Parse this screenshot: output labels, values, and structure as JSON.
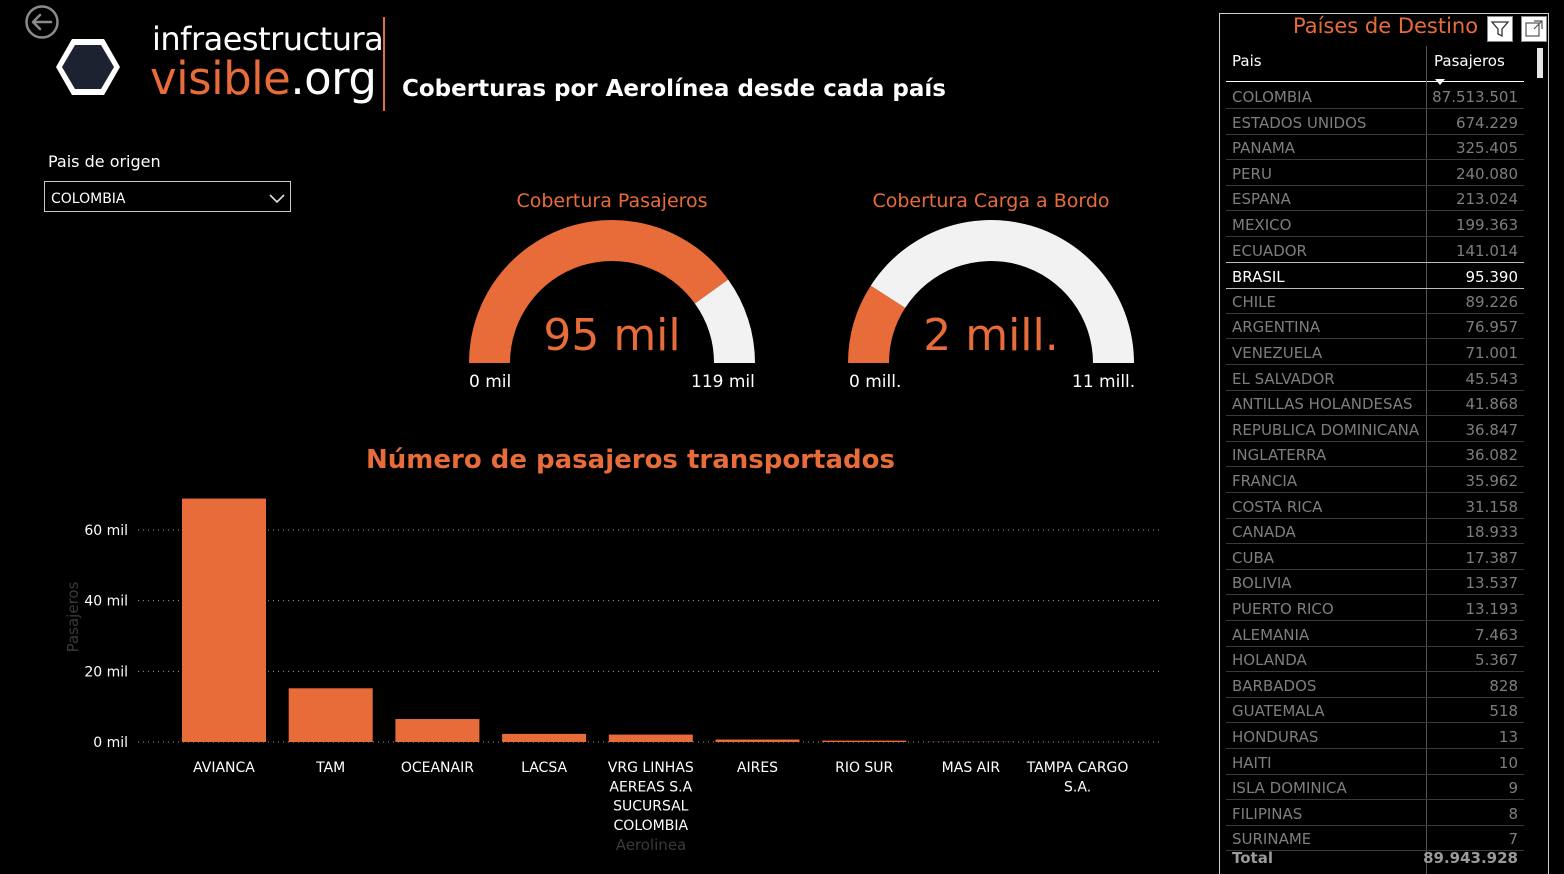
{
  "header": {
    "logo_line1": "infraestructura",
    "logo_line2a": "visible",
    "logo_line2b": ".org",
    "title": "Coberturas por Aerolínea desde cada país"
  },
  "slicer": {
    "label": "Pais de origen",
    "value": "COLOMBIA"
  },
  "gauges": [
    {
      "title": "Cobertura Pasajeros",
      "value_label": "95 mil",
      "min_label": "0 mil",
      "max_label": "119 mil",
      "value": 95390,
      "max": 119000
    },
    {
      "title": "Cobertura Carga a Bordo",
      "value_label": "2 mill.",
      "min_label": "0 mill.",
      "max_label": "11 mill.",
      "value": 2,
      "max": 11
    }
  ],
  "chart_data": {
    "type": "bar",
    "title": "Número de pasajeros transportados",
    "xlabel": "Aerolinea",
    "ylabel": "Pasajeros",
    "ylim": [
      0,
      68000
    ],
    "yticks": [
      {
        "value": 0,
        "label": "0 mil"
      },
      {
        "value": 20000,
        "label": "20 mil"
      },
      {
        "value": 40000,
        "label": "40 mil"
      },
      {
        "value": 60000,
        "label": "60 mil"
      }
    ],
    "categories": [
      "AVIANCA",
      "TAM",
      "OCEANAIR",
      "LACSA",
      "VRG LINHAS AEREAS S.A SUCURSAL COLOMBIA",
      "AIRES",
      "RIO SUR",
      "MAS AIR",
      "TAMPA CARGO S.A."
    ],
    "category_lines": [
      [
        "AVIANCA"
      ],
      [
        "TAM"
      ],
      [
        "OCEANAIR"
      ],
      [
        "LACSA"
      ],
      [
        "VRG LINHAS",
        "AEREAS S.A",
        "SUCURSAL",
        "COLOMBIA"
      ],
      [
        "AIRES"
      ],
      [
        "RIO SUR"
      ],
      [
        "MAS AIR"
      ],
      [
        "TAMPA CARGO",
        "S.A."
      ]
    ],
    "values": [
      68900,
      15200,
      6500,
      2300,
      2100,
      700,
      400,
      50,
      20
    ],
    "grid": true,
    "color": "#e86c3a"
  },
  "table": {
    "title": "Países de Destino",
    "col1": "Pais",
    "col2": "Pasajeros",
    "rows": [
      {
        "pais": "COLOMBIA",
        "pasajeros": "87.513.501"
      },
      {
        "pais": "ESTADOS UNIDOS",
        "pasajeros": "674.229"
      },
      {
        "pais": "PANAMA",
        "pasajeros": "325.405"
      },
      {
        "pais": "PERU",
        "pasajeros": "240.080"
      },
      {
        "pais": "ESPANA",
        "pasajeros": "213.024"
      },
      {
        "pais": "MEXICO",
        "pasajeros": "199.363"
      },
      {
        "pais": "ECUADOR",
        "pasajeros": "141.014"
      },
      {
        "pais": "BRASIL",
        "pasajeros": "95.390",
        "selected": true
      },
      {
        "pais": "CHILE",
        "pasajeros": "89.226"
      },
      {
        "pais": "ARGENTINA",
        "pasajeros": "76.957"
      },
      {
        "pais": "VENEZUELA",
        "pasajeros": "71.001"
      },
      {
        "pais": "EL SALVADOR",
        "pasajeros": "45.543"
      },
      {
        "pais": "ANTILLAS HOLANDESAS",
        "pasajeros": "41.868"
      },
      {
        "pais": "REPUBLICA DOMINICANA",
        "pasajeros": "36.847"
      },
      {
        "pais": "INGLATERRA",
        "pasajeros": "36.082"
      },
      {
        "pais": "FRANCIA",
        "pasajeros": "35.962"
      },
      {
        "pais": "COSTA RICA",
        "pasajeros": "31.158"
      },
      {
        "pais": "CANADA",
        "pasajeros": "18.933"
      },
      {
        "pais": "CUBA",
        "pasajeros": "17.387"
      },
      {
        "pais": "BOLIVIA",
        "pasajeros": "13.537"
      },
      {
        "pais": "PUERTO RICO",
        "pasajeros": "13.193"
      },
      {
        "pais": "ALEMANIA",
        "pasajeros": "7.463"
      },
      {
        "pais": "HOLANDA",
        "pasajeros": "5.367"
      },
      {
        "pais": "BARBADOS",
        "pasajeros": "828"
      },
      {
        "pais": "GUATEMALA",
        "pasajeros": "518"
      },
      {
        "pais": "HONDURAS",
        "pasajeros": "13"
      },
      {
        "pais": "HAITI",
        "pasajeros": "10"
      },
      {
        "pais": "ISLA DOMINICA",
        "pasajeros": "9"
      },
      {
        "pais": "FILIPINAS",
        "pasajeros": "8"
      },
      {
        "pais": "SURINAME",
        "pasajeros": "7"
      }
    ],
    "total_label": "Total",
    "total_value": "89.943.928"
  },
  "icons": {
    "back": "back-arrow-icon",
    "dropdown": "chevron-down-icon",
    "filter": "filter-icon",
    "focus": "focus-mode-icon"
  },
  "colors": {
    "accent": "#e86c3a",
    "gauge_remaining": "#f2f2f2",
    "background": "#000000"
  }
}
